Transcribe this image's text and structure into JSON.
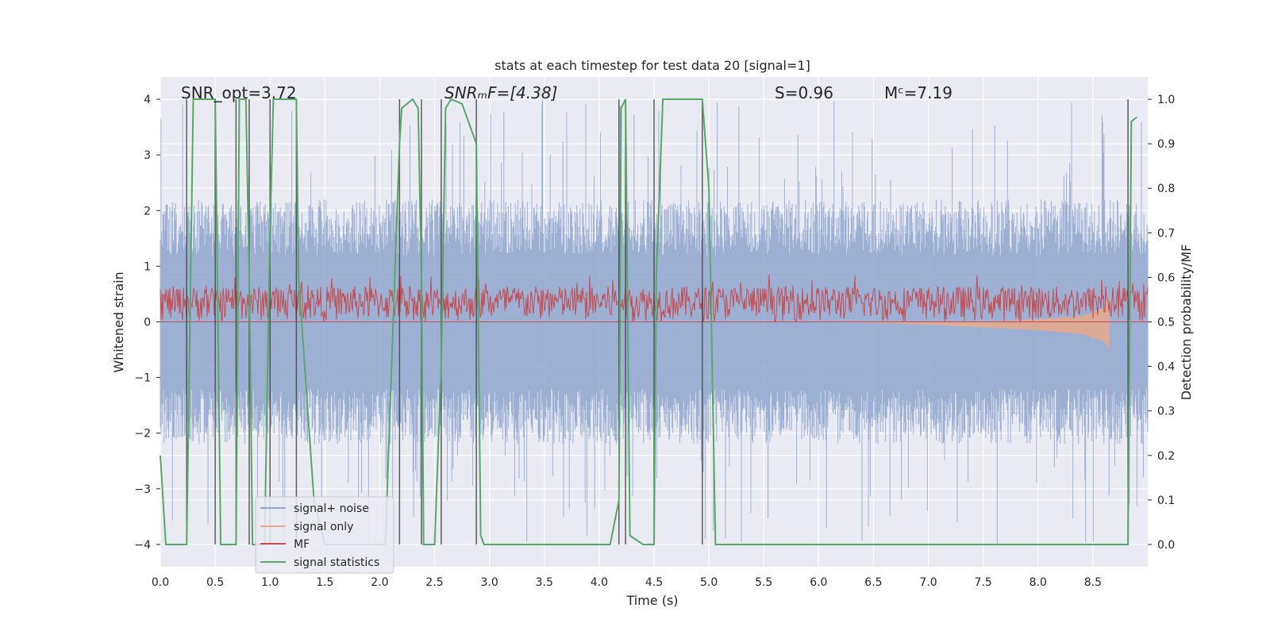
{
  "chart_data": {
    "type": "line",
    "title": "stats at each timestep for test data 20 [signal=1]",
    "xlabel": "Time (s)",
    "ylabel": "Whitened strain",
    "ylabel_right": "Detection probability/MF",
    "xlim": [
      0.0,
      9.0
    ],
    "ylim": [
      -4.4,
      4.4
    ],
    "ylim_right": [
      -0.05,
      1.05
    ],
    "x_ticks": [
      0.0,
      0.5,
      1.0,
      1.5,
      2.0,
      2.5,
      3.0,
      3.5,
      4.0,
      4.5,
      5.0,
      5.5,
      6.0,
      6.5,
      7.0,
      7.5,
      8.0,
      8.5
    ],
    "x_tick_labels": [
      "0.0",
      "0.5",
      "1.0",
      "1.5",
      "2.0",
      "2.5",
      "3.0",
      "3.5",
      "4.0",
      "4.5",
      "5.0",
      "5.5",
      "6.0",
      "6.5",
      "7.0",
      "7.5",
      "8.0",
      "8.5"
    ],
    "y_ticks": [
      -4,
      -3,
      -2,
      -1,
      0,
      1,
      2,
      3,
      4
    ],
    "y_tick_labels": [
      "−4",
      "−3",
      "−2",
      "−1",
      "0",
      "1",
      "2",
      "3",
      "4"
    ],
    "y_ticks_right": [
      0.0,
      0.1,
      0.2,
      0.3,
      0.4,
      0.5,
      0.6,
      0.7,
      0.8,
      0.9,
      1.0
    ],
    "y_tick_labels_right": [
      "0.0",
      "0.1",
      "0.2",
      "0.3",
      "0.4",
      "0.5",
      "0.6",
      "0.7",
      "0.8",
      "0.9",
      "1.0"
    ],
    "grid": true,
    "legend_position": "bottom-left",
    "annotations": [
      {
        "text": "SNR_opt=3.72",
        "x": 0.2
      },
      {
        "text": "SNRₘF=[4.38]",
        "x": 2.6
      },
      {
        "text": "S=0.96",
        "x": 5.6
      },
      {
        "text": "Mᶜ=7.19",
        "x": 6.6
      }
    ],
    "vertical_lines_x": [
      0.24,
      0.5,
      0.69,
      0.81,
      1.0,
      1.24,
      2.18,
      2.38,
      2.56,
      2.88,
      4.18,
      4.24,
      4.5,
      4.94,
      8.82
    ],
    "series": [
      {
        "name": "signal+ noise",
        "color": "#8fa6cf",
        "noise_amplitude": 2.0,
        "peak_amplitude": 4.0
      },
      {
        "name": "signal only",
        "color": "#e8a98a",
        "x": [
          5.8,
          6.5,
          7.0,
          7.5,
          8.0,
          8.4,
          8.6,
          8.65
        ],
        "y_upper": [
          0.0,
          0.0,
          0.0,
          0.0,
          0.05,
          0.1,
          0.25,
          0.45
        ],
        "y_lower": [
          0.0,
          -0.02,
          -0.05,
          -0.1,
          -0.15,
          -0.22,
          -0.35,
          -0.5
        ]
      },
      {
        "name": "MF",
        "color": "#c44e52",
        "axis": "right",
        "baseline": 0.5,
        "typical_max": 0.58,
        "peak_max": 0.61
      },
      {
        "name": "signal statistics",
        "color": "#55a868",
        "axis": "right",
        "x": [
          0.0,
          0.05,
          0.24,
          0.27,
          0.3,
          0.5,
          0.52,
          0.55,
          0.69,
          0.72,
          0.78,
          0.81,
          0.84,
          0.95,
          1.0,
          1.03,
          1.08,
          1.24,
          1.26,
          1.4,
          1.5,
          2.05,
          2.18,
          2.2,
          2.3,
          2.35,
          2.38,
          2.4,
          2.45,
          2.5,
          2.56,
          2.6,
          2.65,
          2.75,
          2.88,
          2.92,
          2.95,
          3.5,
          4.1,
          4.18,
          4.2,
          4.24,
          4.28,
          4.4,
          4.5,
          4.52,
          4.58,
          4.94,
          5.0,
          5.06,
          8.82,
          8.85,
          8.9
        ],
        "y": [
          0.2,
          0.0,
          0.0,
          0.5,
          1.0,
          1.0,
          0.6,
          0.0,
          0.0,
          1.0,
          1.0,
          0.6,
          0.0,
          0.0,
          0.7,
          1.0,
          1.0,
          1.0,
          0.6,
          0.1,
          0.0,
          0.0,
          0.9,
          0.98,
          1.0,
          0.98,
          0.6,
          0.0,
          0.0,
          0.0,
          0.4,
          0.98,
          1.0,
          0.99,
          0.9,
          0.02,
          0.0,
          0.0,
          0.0,
          0.1,
          0.98,
          1.0,
          0.02,
          0.0,
          0.0,
          0.6,
          1.0,
          1.0,
          0.8,
          0.0,
          0.0,
          0.95,
          0.96
        ]
      }
    ]
  }
}
